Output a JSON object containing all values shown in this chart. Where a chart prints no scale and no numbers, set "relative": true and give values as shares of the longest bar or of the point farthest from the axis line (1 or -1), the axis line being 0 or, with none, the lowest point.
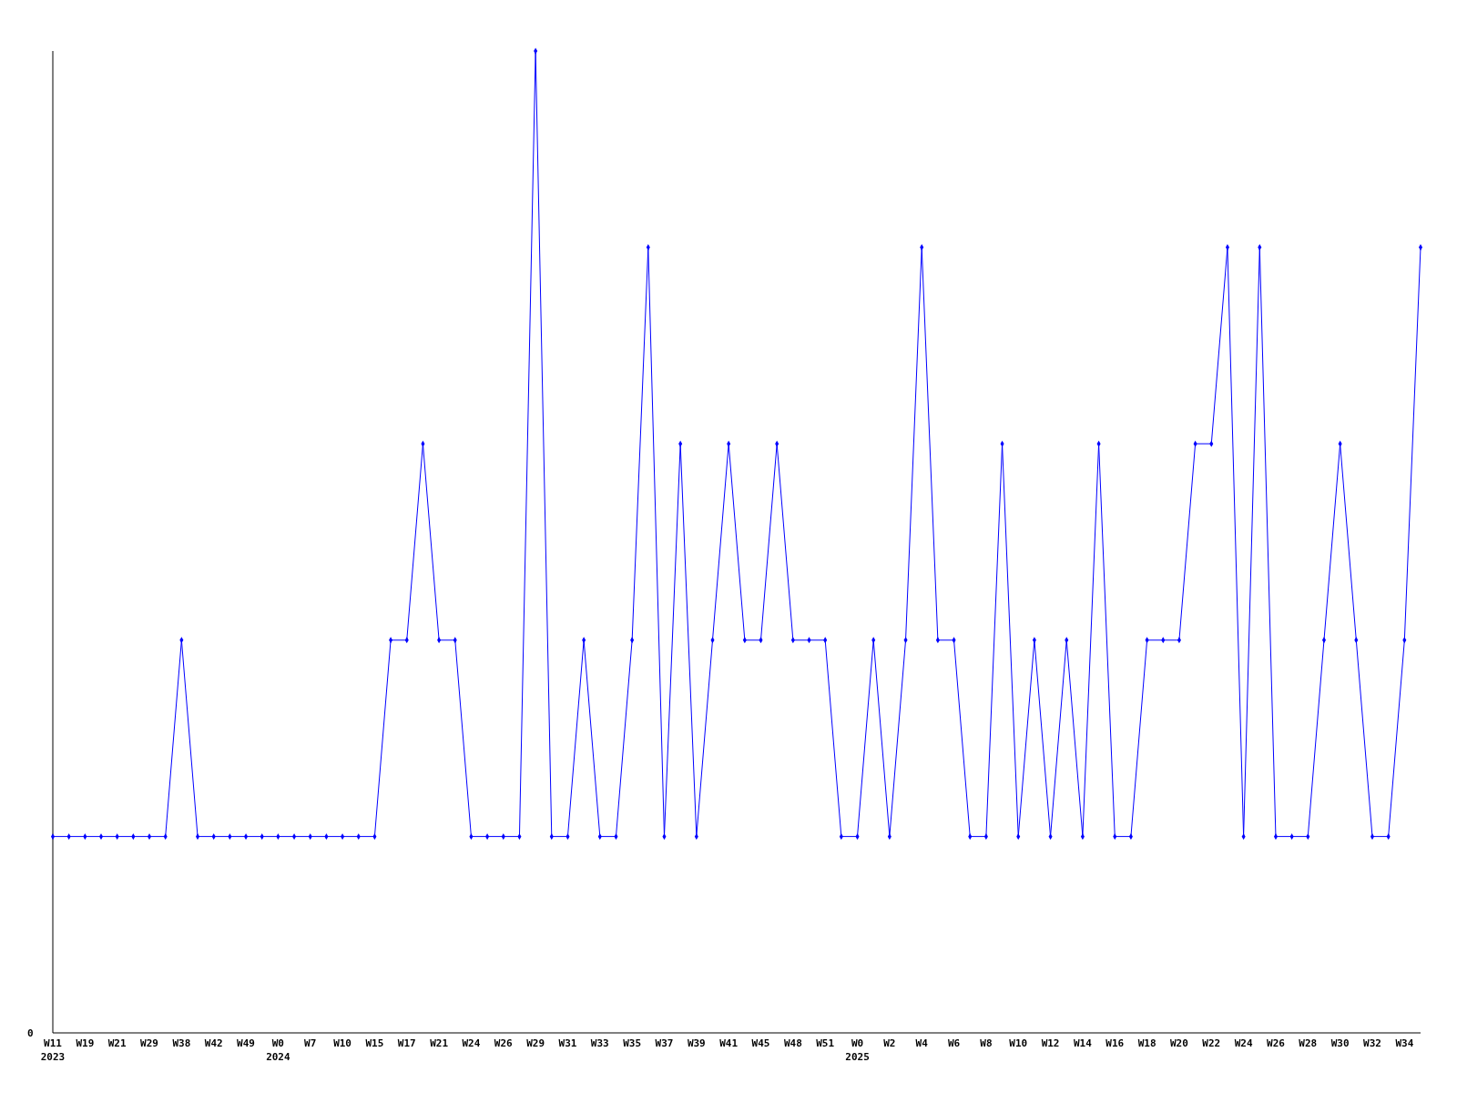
{
  "chart_data": {
    "type": "line",
    "relative": true,
    "marker": "diamond",
    "categories": [
      "W11\n2023",
      null,
      "W19",
      null,
      "W21",
      null,
      "W29",
      null,
      "W38",
      null,
      "W42",
      null,
      "W49",
      null,
      "W0\n2024",
      null,
      "W7",
      null,
      "W10",
      null,
      "W15",
      null,
      "W17",
      null,
      "W21",
      null,
      "W24",
      null,
      "W26",
      null,
      "W29",
      null,
      "W31",
      null,
      "W33",
      null,
      "W35",
      null,
      "W37",
      null,
      "W39",
      null,
      "W41",
      null,
      "W45",
      null,
      "W48",
      null,
      "W51",
      null,
      "W0\n2025",
      null,
      "W2",
      null,
      "W4",
      null,
      "W6",
      null,
      "W8",
      null,
      "W10",
      null,
      "W12",
      null,
      "W14",
      null,
      "W16",
      null,
      "W18",
      null,
      "W20",
      null,
      "W22",
      null,
      "W24",
      null,
      "W26",
      null,
      "W28",
      null,
      "W30",
      null,
      "W32",
      null,
      "W34",
      null
    ],
    "series": [
      {
        "color": "#0000ff",
        "values": [
          0.2,
          0.2,
          0.2,
          0.2,
          0.2,
          0.2,
          0.2,
          0.2,
          0.4,
          0.2,
          0.2,
          0.2,
          0.2,
          0.2,
          0.2,
          0.2,
          0.2,
          0.2,
          0.2,
          0.2,
          0.2,
          0.4,
          0.4,
          0.6,
          0.4,
          0.4,
          0.2,
          0.2,
          0.2,
          0.2,
          1,
          0.2,
          0.2,
          0.4,
          0.2,
          0.2,
          0.4,
          0.8,
          0.2,
          0.6,
          0.2,
          0.4,
          0.6,
          0.4,
          0.4,
          0.6,
          0.4,
          0.4,
          0.4,
          0.2,
          0.2,
          0.4,
          0.2,
          0.4,
          0.8,
          0.4,
          0.4,
          0.2,
          0.2,
          0.6,
          0.2,
          0.4,
          0.2,
          0.4,
          0.2,
          0.6,
          0.2,
          0.2,
          0.4,
          0.4,
          0.4,
          0.6,
          0.6,
          0.8,
          0.2,
          0.8,
          0.2,
          0.2,
          0.2,
          0.4,
          0.6,
          0.4,
          0.2,
          0.2,
          0.4,
          0.8
        ]
      }
    ],
    "annotations": [
      "0"
    ]
  }
}
